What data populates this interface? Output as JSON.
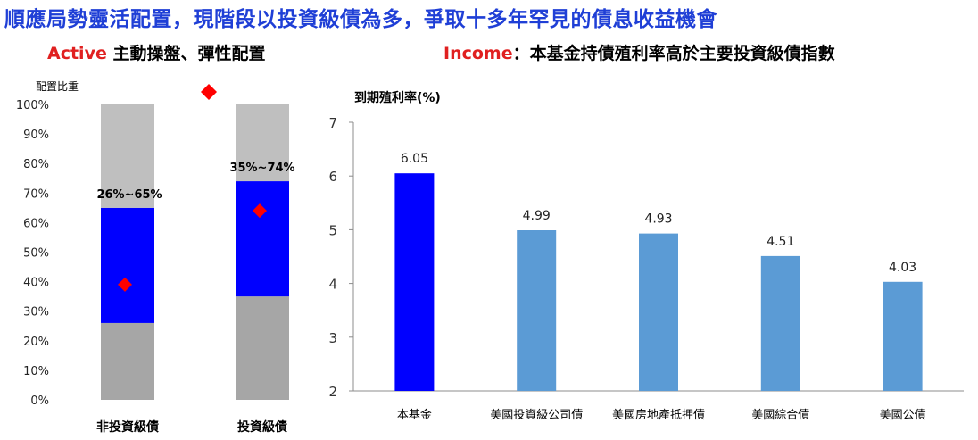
{
  "headline": "順應局勢靈活配置，現階段以投資級債為多，爭取十多年罕見的債息收益機會",
  "left_heading": {
    "highlight": "Active",
    "text": " 主動操盤、彈性配置"
  },
  "right_heading": {
    "highlight": "Income",
    "text": "：本基金持債殖利率高於主要投資級債指數"
  },
  "colors": {
    "headline": "#1f3fd6",
    "highlight": "#e02020",
    "range_band": "#0000ff",
    "upper_band": "#bfbfbf",
    "lower_band": "#a6a6a6",
    "marker": "#ff0000",
    "fund_bar": "#0000ff",
    "index_bar": "#5b9bd5"
  },
  "chart_data": [
    {
      "type": "bar",
      "subtype": "stacked-range",
      "ylabel": "配置比重",
      "ylim": [
        0,
        100
      ],
      "yticks": [
        "0%",
        "10%",
        "20%",
        "30%",
        "40%",
        "50%",
        "60%",
        "70%",
        "80%",
        "90%",
        "100%"
      ],
      "categories": [
        "非投資級債",
        "投資級債"
      ],
      "ranges": [
        {
          "category": "非投資級債",
          "low": 26,
          "high": 65,
          "label": "26%~65%"
        },
        {
          "category": "投資級債",
          "low": 35,
          "high": 74,
          "label": "35%~74%"
        }
      ],
      "markers": [
        {
          "category": "非投資級債",
          "value": 39
        },
        {
          "category": "投資級債",
          "value": 64
        }
      ],
      "legend_marker": {
        "shape": "diamond",
        "color": "#ff0000"
      }
    },
    {
      "type": "bar",
      "ylabel": "到期殖利率(%)",
      "ylim": [
        2,
        7
      ],
      "yticks": [
        "2",
        "3",
        "4",
        "5",
        "6",
        "7"
      ],
      "categories": [
        "本基金",
        "美國投資級公司債",
        "美國房地產抵押債",
        "美國綜合債",
        "美國公債"
      ],
      "values": [
        6.05,
        4.99,
        4.93,
        4.51,
        4.03
      ],
      "value_labels": [
        "6.05",
        "4.99",
        "4.93",
        "4.51",
        "4.03"
      ]
    }
  ]
}
